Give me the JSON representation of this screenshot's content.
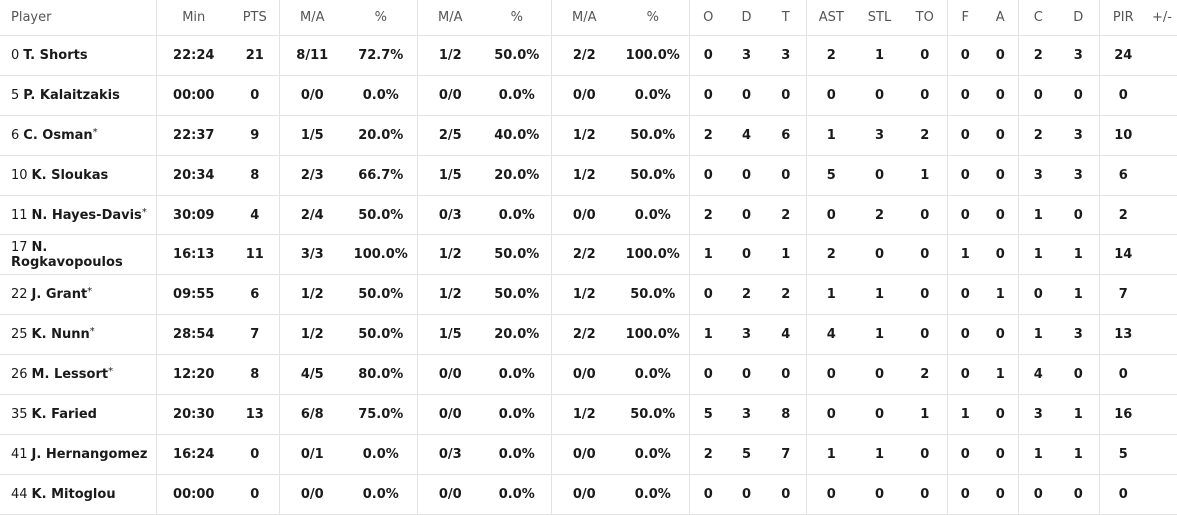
{
  "columns": [
    "Player",
    "Min",
    "PTS",
    "M/A",
    "%",
    "M/A",
    "%",
    "M/A",
    "%",
    "O",
    "D",
    "T",
    "AST",
    "STL",
    "TO",
    "F",
    "A",
    "C",
    "D",
    "PIR",
    "+/-"
  ],
  "rows": [
    {
      "number": "0",
      "name": "T. Shorts",
      "starter": false,
      "stats": [
        "22:24",
        "21",
        "8/11",
        "72.7%",
        "1/2",
        "50.0%",
        "2/2",
        "100.0%",
        "0",
        "3",
        "3",
        "2",
        "1",
        "0",
        "0",
        "0",
        "2",
        "3",
        "24",
        ""
      ]
    },
    {
      "number": "5",
      "name": "P. Kalaitzakis",
      "starter": false,
      "stats": [
        "00:00",
        "0",
        "0/0",
        "0.0%",
        "0/0",
        "0.0%",
        "0/0",
        "0.0%",
        "0",
        "0",
        "0",
        "0",
        "0",
        "0",
        "0",
        "0",
        "0",
        "0",
        "0",
        ""
      ]
    },
    {
      "number": "6",
      "name": "C. Osman",
      "starter": true,
      "stats": [
        "22:37",
        "9",
        "1/5",
        "20.0%",
        "2/5",
        "40.0%",
        "1/2",
        "50.0%",
        "2",
        "4",
        "6",
        "1",
        "3",
        "2",
        "0",
        "0",
        "2",
        "3",
        "10",
        ""
      ]
    },
    {
      "number": "10",
      "name": "K. Sloukas",
      "starter": false,
      "stats": [
        "20:34",
        "8",
        "2/3",
        "66.7%",
        "1/5",
        "20.0%",
        "1/2",
        "50.0%",
        "0",
        "0",
        "0",
        "5",
        "0",
        "1",
        "0",
        "0",
        "3",
        "3",
        "6",
        ""
      ]
    },
    {
      "number": "11",
      "name": "N. Hayes-Davis",
      "starter": true,
      "stats": [
        "30:09",
        "4",
        "2/4",
        "50.0%",
        "0/3",
        "0.0%",
        "0/0",
        "0.0%",
        "2",
        "0",
        "2",
        "0",
        "2",
        "0",
        "0",
        "0",
        "1",
        "0",
        "2",
        ""
      ]
    },
    {
      "number": "17",
      "name": "N. Rogkavopoulos",
      "starter": false,
      "stats": [
        "16:13",
        "11",
        "3/3",
        "100.0%",
        "1/2",
        "50.0%",
        "2/2",
        "100.0%",
        "1",
        "0",
        "1",
        "2",
        "0",
        "0",
        "1",
        "0",
        "1",
        "1",
        "14",
        ""
      ]
    },
    {
      "number": "22",
      "name": "J. Grant",
      "starter": true,
      "stats": [
        "09:55",
        "6",
        "1/2",
        "50.0%",
        "1/2",
        "50.0%",
        "1/2",
        "50.0%",
        "0",
        "2",
        "2",
        "1",
        "1",
        "0",
        "0",
        "1",
        "0",
        "1",
        "7",
        ""
      ]
    },
    {
      "number": "25",
      "name": "K. Nunn",
      "starter": true,
      "stats": [
        "28:54",
        "7",
        "1/2",
        "50.0%",
        "1/5",
        "20.0%",
        "2/2",
        "100.0%",
        "1",
        "3",
        "4",
        "4",
        "1",
        "0",
        "0",
        "0",
        "1",
        "3",
        "13",
        ""
      ]
    },
    {
      "number": "26",
      "name": "M. Lessort",
      "starter": true,
      "stats": [
        "12:20",
        "8",
        "4/5",
        "80.0%",
        "0/0",
        "0.0%",
        "0/0",
        "0.0%",
        "0",
        "0",
        "0",
        "0",
        "0",
        "2",
        "0",
        "1",
        "4",
        "0",
        "0",
        ""
      ]
    },
    {
      "number": "35",
      "name": "K. Faried",
      "starter": false,
      "stats": [
        "20:30",
        "13",
        "6/8",
        "75.0%",
        "0/0",
        "0.0%",
        "1/2",
        "50.0%",
        "5",
        "3",
        "8",
        "0",
        "0",
        "1",
        "1",
        "0",
        "3",
        "1",
        "16",
        ""
      ]
    },
    {
      "number": "41",
      "name": "J. Hernangomez",
      "starter": false,
      "stats": [
        "16:24",
        "0",
        "0/1",
        "0.0%",
        "0/3",
        "0.0%",
        "0/0",
        "0.0%",
        "2",
        "5",
        "7",
        "1",
        "1",
        "0",
        "0",
        "0",
        "1",
        "1",
        "5",
        ""
      ]
    },
    {
      "number": "44",
      "name": "K. Mitoglou",
      "starter": false,
      "stats": [
        "00:00",
        "0",
        "0/0",
        "0.0%",
        "0/0",
        "0.0%",
        "0/0",
        "0.0%",
        "0",
        "0",
        "0",
        "0",
        "0",
        "0",
        "0",
        "0",
        "0",
        "0",
        "0",
        ""
      ]
    }
  ]
}
